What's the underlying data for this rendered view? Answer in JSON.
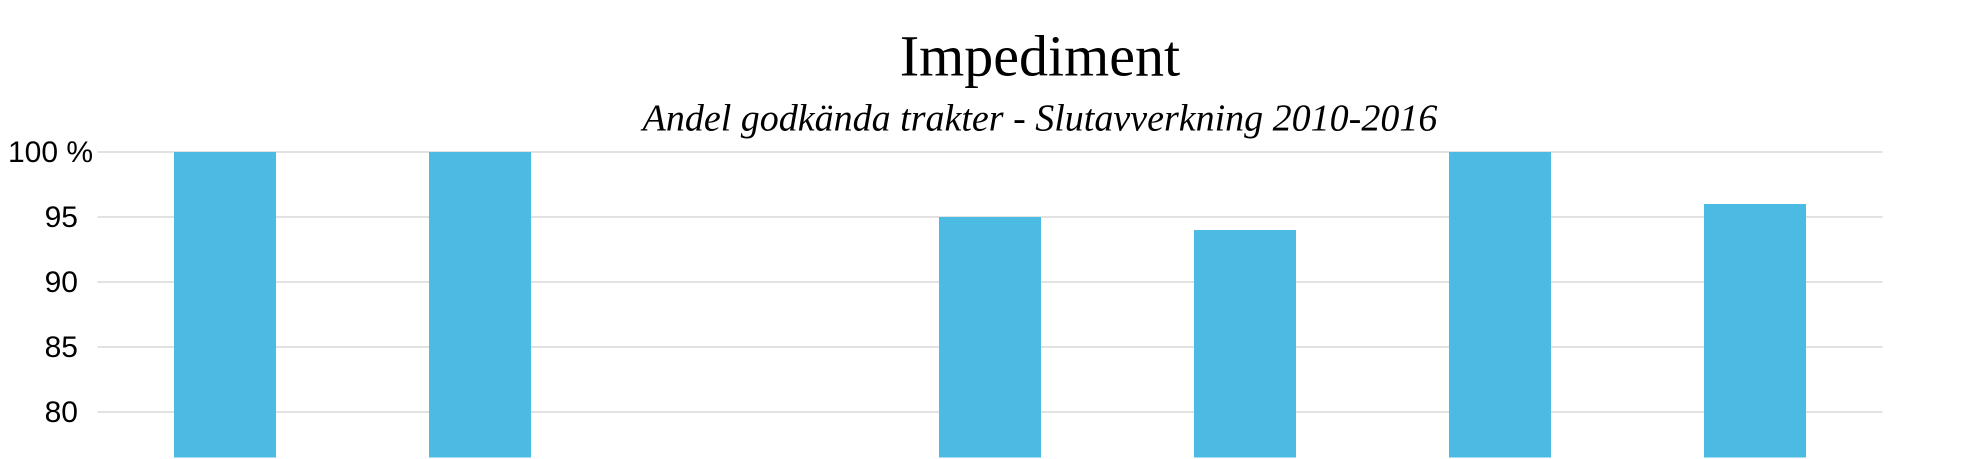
{
  "chart_data": {
    "type": "bar",
    "title": "Impediment",
    "subtitle": "Andel godkända trakter - Slutavverkning 2010-2016",
    "categories": [
      null,
      null,
      null,
      null,
      null,
      null,
      null
    ],
    "values": [
      100,
      100,
      null,
      95,
      94,
      100,
      96
    ],
    "color": "#4bbbe3",
    "ylim": [
      76.5,
      100
    ],
    "yticks": [
      80,
      85,
      90,
      95,
      {
        "value": 100,
        "label": "100 %"
      }
    ],
    "grid": true
  }
}
